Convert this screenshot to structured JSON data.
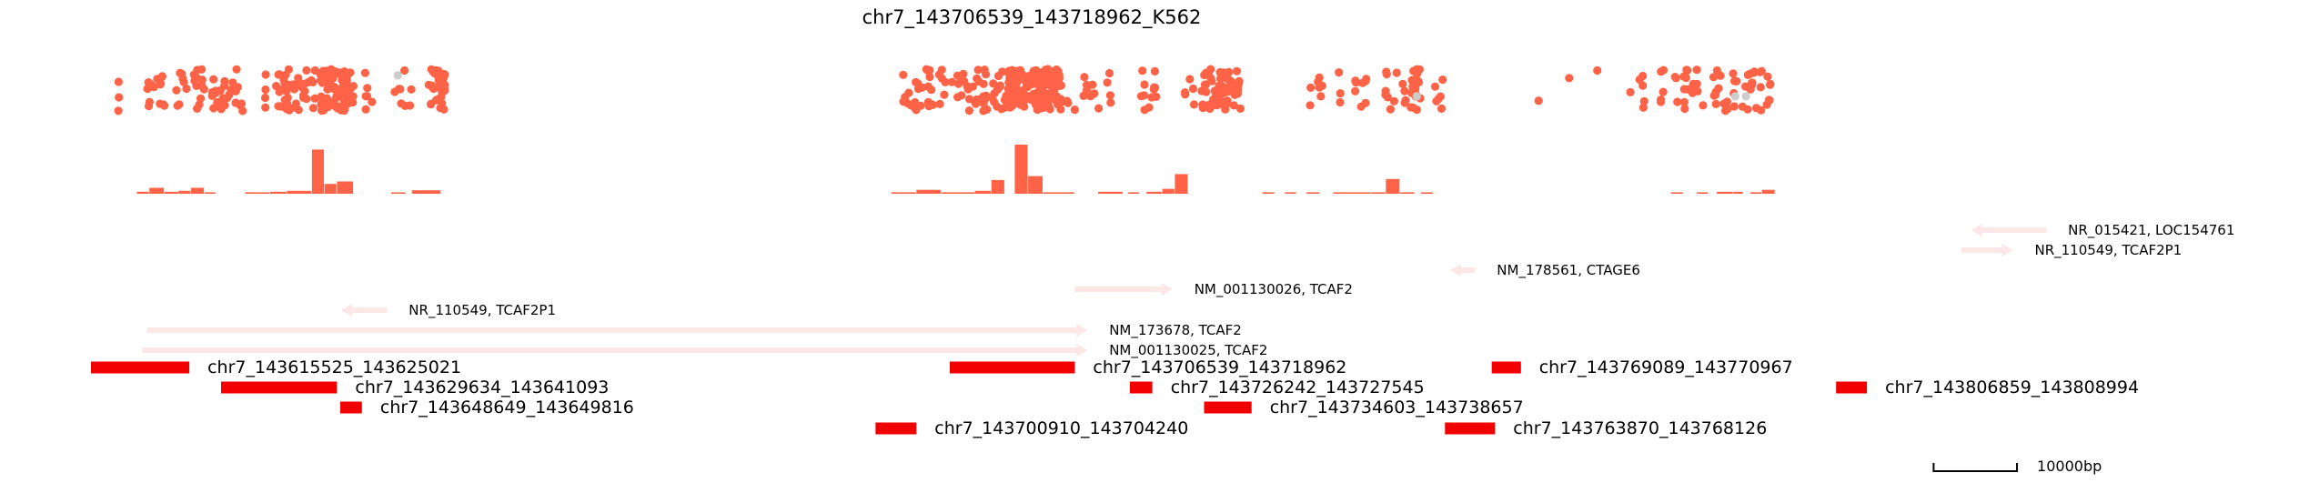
{
  "chart_data": {
    "type": "genome_track",
    "title": "chr7_143706539_143718962_K562",
    "domain": [
      143600000,
      143855000
    ],
    "colors": {
      "point": "#ff6347",
      "bar": "#ff6347",
      "gene": "#fde6e6",
      "region": "#f00000",
      "grey": "#cccccc"
    },
    "point_clusters": [
      {
        "from": 143602400,
        "to": 143603800,
        "n": 3
      },
      {
        "from": 143606500,
        "to": 143609000,
        "n": 14
      },
      {
        "from": 143609500,
        "to": 143611500,
        "n": 8
      },
      {
        "from": 143611800,
        "to": 143614000,
        "n": 12
      },
      {
        "from": 143614500,
        "to": 143616800,
        "n": 18
      },
      {
        "from": 143617000,
        "to": 143618500,
        "n": 8
      },
      {
        "from": 143619800,
        "to": 143621500,
        "n": 4
      },
      {
        "from": 143622000,
        "to": 143627000,
        "n": 45
      },
      {
        "from": 143627500,
        "to": 143631500,
        "n": 90
      },
      {
        "from": 143632500,
        "to": 143633800,
        "n": 6
      },
      {
        "from": 143636000,
        "to": 143639000,
        "n": 8
      },
      {
        "from": 143640500,
        "to": 143642500,
        "n": 30
      },
      {
        "from": 143697000,
        "to": 143703000,
        "n": 30
      },
      {
        "from": 143703200,
        "to": 143707500,
        "n": 28
      },
      {
        "from": 143707800,
        "to": 143709800,
        "n": 14
      },
      {
        "from": 143710000,
        "to": 143716500,
        "n": 140
      },
      {
        "from": 143716800,
        "to": 143722500,
        "n": 16
      },
      {
        "from": 143725800,
        "to": 143728500,
        "n": 12
      },
      {
        "from": 143731200,
        "to": 143732400,
        "n": 5
      },
      {
        "from": 143733200,
        "to": 143738000,
        "n": 60
      },
      {
        "from": 143745500,
        "to": 143750000,
        "n": 10
      },
      {
        "from": 143751500,
        "to": 143753000,
        "n": 8
      },
      {
        "from": 143755200,
        "to": 143757800,
        "n": 12
      },
      {
        "from": 143758200,
        "to": 143759500,
        "n": 20
      },
      {
        "from": 143761000,
        "to": 143762200,
        "n": 6
      },
      {
        "from": 143773000,
        "to": 143774000,
        "n": 1
      },
      {
        "from": 143776800,
        "to": 143777800,
        "n": 1
      },
      {
        "from": 143780200,
        "to": 143781200,
        "n": 1
      },
      {
        "from": 143784200,
        "to": 143786500,
        "n": 6
      },
      {
        "from": 143788200,
        "to": 143790500,
        "n": 8
      },
      {
        "from": 143791000,
        "to": 143793500,
        "n": 16
      },
      {
        "from": 143794000,
        "to": 143801500,
        "n": 40
      }
    ],
    "grey_points": [
      {
        "pos": 143636800,
        "y": 0.85
      },
      {
        "pos": 143759000,
        "y": 0.35
      },
      {
        "pos": 143797200,
        "y": 0.35
      },
      {
        "pos": 143798500,
        "y": 0.35
      }
    ],
    "coverage_bins": [
      {
        "start": 143605500,
        "end": 143607000,
        "value": 0.04
      },
      {
        "start": 143607000,
        "end": 143608800,
        "value": 0.12
      },
      {
        "start": 143608800,
        "end": 143610500,
        "value": 0.04
      },
      {
        "start": 143610500,
        "end": 143612000,
        "value": 0.06
      },
      {
        "start": 143612000,
        "end": 143613600,
        "value": 0.12
      },
      {
        "start": 143613600,
        "end": 143615000,
        "value": 0.03
      },
      {
        "start": 143618500,
        "end": 143621500,
        "value": 0.03
      },
      {
        "start": 143621500,
        "end": 143623500,
        "value": 0.04
      },
      {
        "start": 143623500,
        "end": 143626500,
        "value": 0.06
      },
      {
        "start": 143626500,
        "end": 143628000,
        "value": 0.9
      },
      {
        "start": 143628000,
        "end": 143629500,
        "value": 0.2
      },
      {
        "start": 143629500,
        "end": 143631500,
        "value": 0.25
      },
      {
        "start": 143636000,
        "end": 143637800,
        "value": 0.02
      },
      {
        "start": 143638500,
        "end": 143642000,
        "value": 0.07
      },
      {
        "start": 143696000,
        "end": 143699000,
        "value": 0.03
      },
      {
        "start": 143699000,
        "end": 143702000,
        "value": 0.08
      },
      {
        "start": 143702000,
        "end": 143706000,
        "value": 0.03
      },
      {
        "start": 143706000,
        "end": 143708000,
        "value": 0.06
      },
      {
        "start": 143708000,
        "end": 143709600,
        "value": 0.28
      },
      {
        "start": 143710800,
        "end": 143712400,
        "value": 1.0
      },
      {
        "start": 143712400,
        "end": 143714200,
        "value": 0.36
      },
      {
        "start": 143714200,
        "end": 143718000,
        "value": 0.03
      },
      {
        "start": 143720800,
        "end": 143723800,
        "value": 0.04
      },
      {
        "start": 143724400,
        "end": 143725800,
        "value": 0.03
      },
      {
        "start": 143726600,
        "end": 143728500,
        "value": 0.04
      },
      {
        "start": 143728500,
        "end": 143730000,
        "value": 0.1
      },
      {
        "start": 143730000,
        "end": 143731600,
        "value": 0.4
      },
      {
        "start": 143740500,
        "end": 143742000,
        "value": 0.03
      },
      {
        "start": 143743200,
        "end": 143744600,
        "value": 0.03
      },
      {
        "start": 143745800,
        "end": 143747400,
        "value": 0.03
      },
      {
        "start": 143749000,
        "end": 143753500,
        "value": 0.03
      },
      {
        "start": 143753500,
        "end": 143755300,
        "value": 0.03
      },
      {
        "start": 143755300,
        "end": 143757000,
        "value": 0.3
      },
      {
        "start": 143757000,
        "end": 143758800,
        "value": 0.03
      },
      {
        "start": 143759500,
        "end": 143761000,
        "value": 0.03
      },
      {
        "start": 143789500,
        "end": 143791000,
        "value": 0.03
      },
      {
        "start": 143792600,
        "end": 143794000,
        "value": 0.03
      },
      {
        "start": 143795000,
        "end": 143797000,
        "value": 0.04
      },
      {
        "start": 143797000,
        "end": 143798200,
        "value": 0.04
      },
      {
        "start": 143799000,
        "end": 143800400,
        "value": 0.03
      },
      {
        "start": 143800400,
        "end": 143802000,
        "value": 0.08
      }
    ],
    "genes": [
      {
        "label": "NR_015421, LOC154761",
        "start": 143825500,
        "end": 143834500,
        "strand": "-",
        "row": 0
      },
      {
        "label": "NR_110549, TCAF2P1",
        "start": 143824300,
        "end": 143830500,
        "strand": "+",
        "row": 1
      },
      {
        "label": "NM_178561, CTAGE6",
        "start": 143763000,
        "end": 143766000,
        "strand": "-",
        "row": 2
      },
      {
        "label": "NM_001130026, TCAF2",
        "start": 143718000,
        "end": 143729700,
        "strand": "+",
        "row": 3
      },
      {
        "label": "NR_110549, TCAF2P1",
        "start": 143630000,
        "end": 143635500,
        "strand": "-",
        "row": 4
      },
      {
        "label": "NM_173678, TCAF2",
        "start": 143606700,
        "end": 143719500,
        "strand": "+",
        "row": 5
      },
      {
        "label": "NM_001130025, TCAF2",
        "start": 143606200,
        "end": 143719500,
        "strand": "+",
        "row": 6
      }
    ],
    "regions": [
      {
        "label": "chr7_143615525_143625021",
        "start": 143600000,
        "end": 143611800,
        "row": 0
      },
      {
        "label": "chr7_143629634_143641093",
        "start": 143615600,
        "end": 143629500,
        "row": 1
      },
      {
        "label": "chr7_143648649_143649816",
        "start": 143629900,
        "end": 143632500,
        "row": 2
      },
      {
        "label": "chr7_143700910_143704240",
        "start": 143694100,
        "end": 143699000,
        "row": 3
      },
      {
        "label": "chr7_143706539_143718962",
        "start": 143703000,
        "end": 143718000,
        "row": 0
      },
      {
        "label": "chr7_143726242_143727545",
        "start": 143724600,
        "end": 143727300,
        "row": 1
      },
      {
        "label": "chr7_143734603_143738657",
        "start": 143733500,
        "end": 143739200,
        "row": 2
      },
      {
        "label": "chr7_143769089_143770967",
        "start": 143768000,
        "end": 143771500,
        "row": 0
      },
      {
        "label": "chr7_143763870_143768126",
        "start": 143762400,
        "end": 143768400,
        "row": 3
      },
      {
        "label": "chr7_143806859_143808994",
        "start": 143809300,
        "end": 143813000,
        "row": 1
      }
    ],
    "scale_bar": {
      "start": 143821000,
      "end": 143831000,
      "label": "10000bp"
    }
  }
}
